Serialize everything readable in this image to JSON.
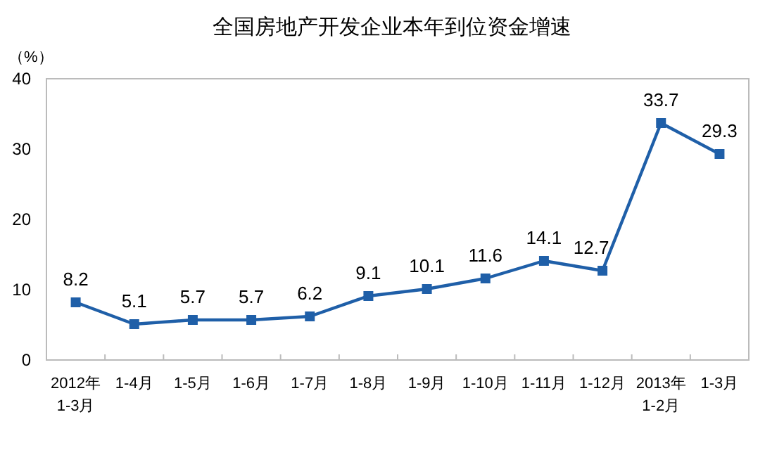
{
  "chart_data": {
    "type": "line",
    "title": "全国房地产开发企业本年到位资金增速",
    "ylabel": "（%）",
    "categories": [
      "2012年\n1-3月",
      "1-4月",
      "1-5月",
      "1-6月",
      "1-7月",
      "1-8月",
      "1-9月",
      "1-10月",
      "1-11月",
      "1-12月",
      "2013年\n1-2月",
      "1-3月"
    ],
    "series": [
      {
        "color": "#1f5fa8",
        "values": [
          8.2,
          5.1,
          5.7,
          5.7,
          6.2,
          9.1,
          10.1,
          11.6,
          14.1,
          12.7,
          33.7,
          29.3
        ]
      }
    ],
    "ylim": [
      0,
      40
    ],
    "yticks": [
      0,
      10,
      20,
      30,
      40
    ],
    "marker": "square",
    "line_style": "solid",
    "data_labels": true,
    "grid": false
  }
}
